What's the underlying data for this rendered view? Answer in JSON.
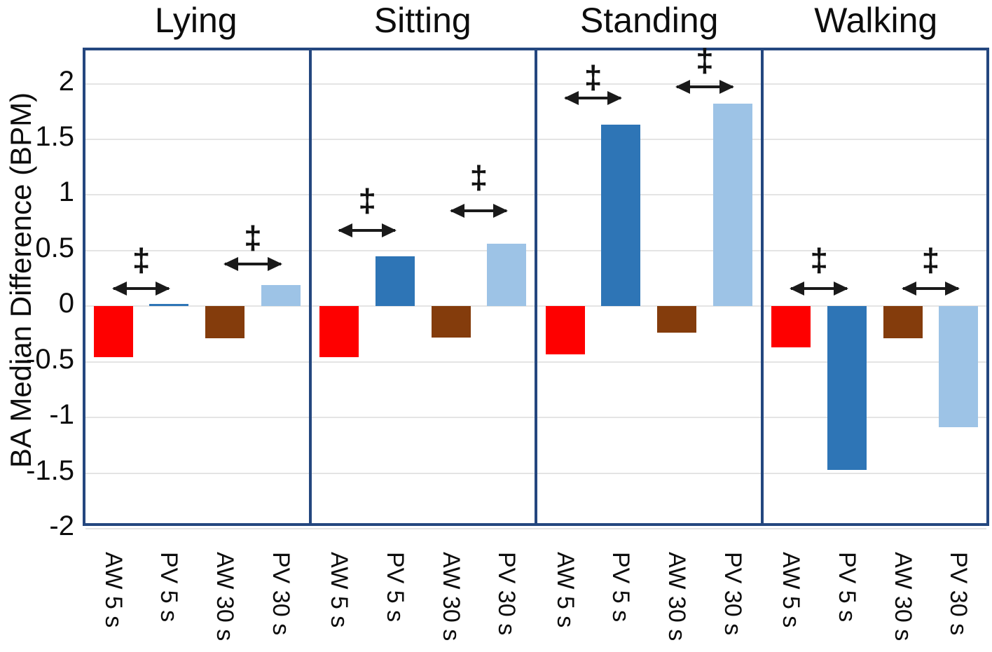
{
  "chart_data": {
    "type": "bar",
    "title": "",
    "ylabel": "BA Median Difference (BPM)",
    "ylim": [
      -2,
      2.3
    ],
    "yticks": [
      2,
      1.5,
      1,
      0.5,
      0,
      -0.5,
      -1,
      -1.5,
      -2
    ],
    "ytick_labels": [
      "2",
      "1.5",
      "1",
      "0.5",
      "0",
      "-0.5",
      "-1",
      "-1.5",
      "-2"
    ],
    "categories": [
      "AW 5 s",
      "PV 5 s",
      "AW 30 s",
      "PV 30 s"
    ],
    "bar_colors": [
      "#fe0000",
      "#2e75b6",
      "#843c0c",
      "#9dc3e6"
    ],
    "grid": true,
    "legend_position": "none",
    "significance_symbol": "‡",
    "panels": [
      {
        "title": "Lying",
        "values": [
          -0.46,
          0.02,
          -0.29,
          0.19
        ],
        "annotations": [
          {
            "between": [
              0,
              1
            ],
            "arrow_y": 0.16,
            "symbol_y": 0.42
          },
          {
            "between": [
              2,
              3
            ],
            "arrow_y": 0.38,
            "symbol_y": 0.62
          }
        ]
      },
      {
        "title": "Sitting",
        "values": [
          -0.46,
          0.45,
          -0.28,
          0.56
        ],
        "annotations": [
          {
            "between": [
              0,
              1
            ],
            "arrow_y": 0.68,
            "symbol_y": 0.95
          },
          {
            "between": [
              2,
              3
            ],
            "arrow_y": 0.86,
            "symbol_y": 1.16
          }
        ]
      },
      {
        "title": "Standing",
        "values": [
          -0.43,
          1.63,
          -0.24,
          1.82
        ],
        "annotations": [
          {
            "between": [
              0,
              1
            ],
            "arrow_y": 1.87,
            "symbol_y": 2.06
          },
          {
            "between": [
              2,
              3
            ],
            "arrow_y": 1.97,
            "symbol_y": 2.21
          }
        ]
      },
      {
        "title": "Walking",
        "values": [
          -0.37,
          -1.47,
          -0.29,
          -1.09
        ],
        "annotations": [
          {
            "between": [
              0,
              1
            ],
            "arrow_y": 0.16,
            "symbol_y": 0.42
          },
          {
            "between": [
              2,
              3
            ],
            "arrow_y": 0.16,
            "symbol_y": 0.42
          }
        ]
      }
    ]
  },
  "style_colors": {
    "panel_border": "#24477f",
    "gridline": "#e4e4e4",
    "text": "#111111",
    "arrow": "#1a1a1a"
  }
}
